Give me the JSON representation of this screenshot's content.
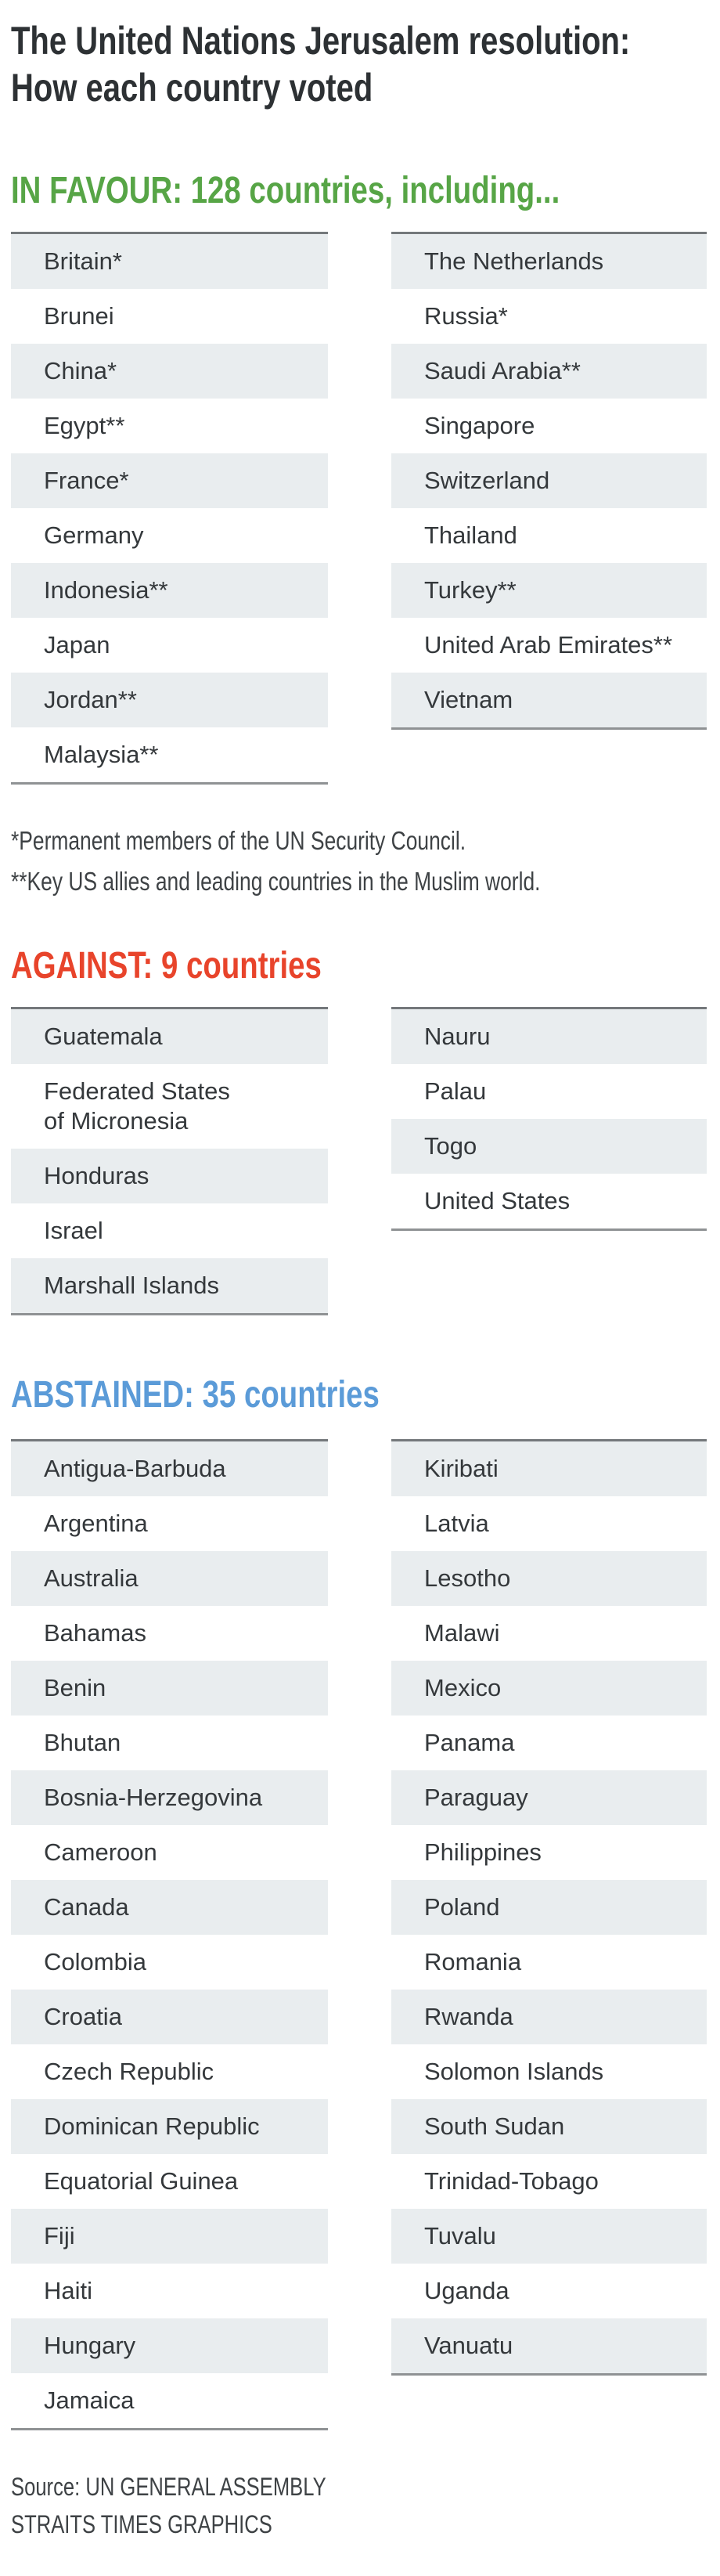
{
  "chart_data": {
    "type": "table",
    "title_line1": "The United Nations Jerusalem resolution:",
    "title_line2": "How each country voted",
    "layout": {
      "columns_per_group": 2,
      "alternating_rows": true,
      "first_row_shaded": true
    },
    "groups": [
      {
        "id": "in-favour",
        "vote": "IN FAVOUR",
        "count": 128,
        "header": "IN FAVOUR: 128 countries, including...",
        "color": "#57a546",
        "column_left": [
          "Britain*",
          "Brunei",
          "China*",
          "Egypt**",
          "France*",
          "Germany",
          "Indonesia**",
          "Japan",
          "Jordan**",
          "Malaysia**"
        ],
        "column_right": [
          "The Netherlands",
          "Russia*",
          "Saudi Arabia**",
          "Singapore",
          "Switzerland",
          "Thailand",
          "Turkey**",
          "United Arab Emirates**",
          "Vietnam"
        ]
      },
      {
        "id": "against",
        "vote": "AGAINST",
        "count": 9,
        "header": "AGAINST: 9 countries",
        "color": "#e8442b",
        "column_left": [
          "Guatemala",
          "Federated States\nof Micronesia",
          "Honduras",
          "Israel",
          "Marshall Islands"
        ],
        "column_right": [
          "Nauru",
          "Palau",
          "Togo",
          "United States"
        ]
      },
      {
        "id": "abstained",
        "vote": "ABSTAINED",
        "count": 35,
        "header": "ABSTAINED: 35 countries",
        "color": "#5b9bd8",
        "column_left": [
          "Antigua-Barbuda",
          "Argentina",
          "Australia",
          "Bahamas",
          "Benin",
          "Bhutan",
          "Bosnia-Herzegovina",
          "Cameroon",
          "Canada",
          "Colombia",
          "Croatia",
          "Czech Republic",
          "Dominican Republic",
          "Equatorial Guinea",
          "Fiji",
          "Haiti",
          "Hungary",
          "Jamaica"
        ],
        "column_right": [
          "Kiribati",
          "Latvia",
          "Lesotho",
          "Malawi",
          "Mexico",
          "Panama",
          "Paraguay",
          "Philippines",
          "Poland",
          "Romania",
          "Rwanda",
          "Solomon Islands",
          "South Sudan",
          "Trinidad-Tobago",
          "Tuvalu",
          "Uganda",
          "Vanuatu"
        ]
      }
    ],
    "footnotes": [
      "*Permanent members of the UN Security Council.",
      "**Key US allies and leading countries in the Muslim world."
    ],
    "source": [
      "Source: UN GENERAL ASSEMBLY",
      "STRAITS TIMES GRAPHICS"
    ],
    "row_colors": {
      "shaded": "#e9edef",
      "plain": "#ffffff",
      "border_top": "#74787b",
      "border_bottom": "#8f9294"
    }
  }
}
